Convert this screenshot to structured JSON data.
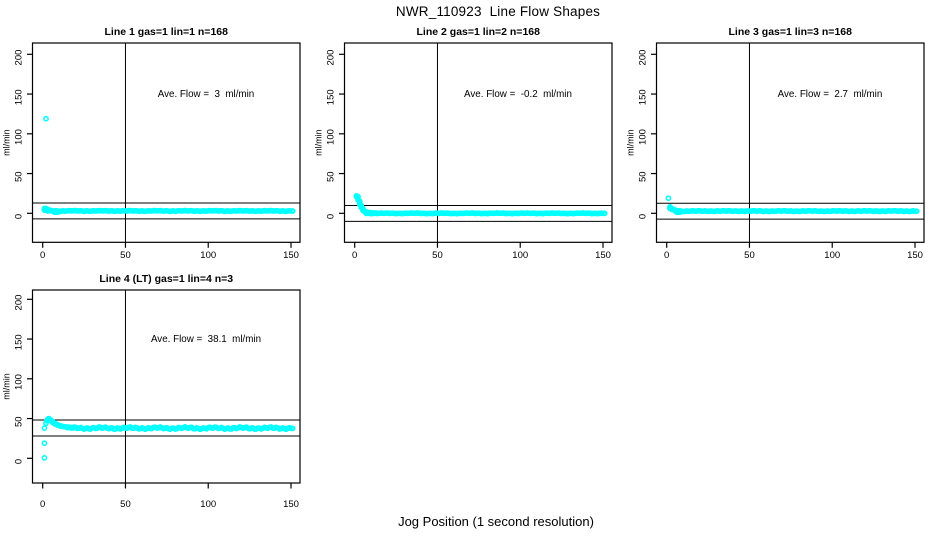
{
  "figure": {
    "title": "NWR_110923  Line Flow Shapes",
    "xlabel": "Jog Position (1 second resolution)",
    "background_color": "#FFFFFF",
    "axis_color": "#000000",
    "marker_color": "#00FFFF"
  },
  "chart_data": [
    {
      "type": "scatter",
      "title": "Line 1 gas=1 lin=1 n=168",
      "line": 1,
      "gas": 1,
      "lin": 1,
      "n": 168,
      "annotation": "Ave. Flow =  3  ml/min",
      "ave_flow_ml_min": 3,
      "ylabel": "ml/min",
      "xticks": [
        0,
        50,
        100,
        150
      ],
      "yticks": [
        0,
        50,
        100,
        150,
        200
      ],
      "xlim": [
        -6,
        156
      ],
      "ylim": [
        -38,
        214
      ],
      "grid": false,
      "vline_x": 50,
      "hlines": [
        13,
        -7
      ],
      "marker": "open-circle",
      "head_points": [
        [
          2,
          119
        ],
        [
          1,
          6
        ],
        [
          1,
          5
        ],
        [
          1,
          4
        ],
        [
          2,
          6
        ],
        [
          2,
          5
        ],
        [
          2,
          4
        ],
        [
          3,
          5
        ],
        [
          3,
          4
        ],
        [
          4,
          4
        ],
        [
          5,
          3.5
        ],
        [
          6,
          3
        ],
        [
          7,
          1.5
        ],
        [
          8,
          1.2
        ],
        [
          9,
          1.5
        ],
        [
          10,
          2
        ],
        [
          11,
          2.5
        ]
      ],
      "band_runs": [
        {
          "from": 3,
          "to": 151,
          "step": 1,
          "y": 3,
          "amp": 0.5
        }
      ]
    },
    {
      "type": "scatter",
      "title": "Line 2 gas=1 lin=2 n=168",
      "line": 2,
      "gas": 1,
      "lin": 2,
      "n": 168,
      "annotation": "Ave. Flow =  -0.2  ml/min",
      "ave_flow_ml_min": -0.2,
      "ylabel": "ml/min",
      "xticks": [
        0,
        50,
        100,
        150
      ],
      "yticks": [
        0,
        50,
        100,
        150,
        200
      ],
      "xlim": [
        -6,
        156
      ],
      "ylim": [
        -38,
        214
      ],
      "grid": false,
      "vline_x": 50,
      "hlines": [
        9.8,
        -10.2
      ],
      "marker": "open-circle",
      "head_points": [
        [
          1,
          22
        ],
        [
          1,
          21
        ],
        [
          2,
          21
        ],
        [
          2,
          19
        ],
        [
          2,
          17
        ],
        [
          3,
          15
        ],
        [
          3,
          13
        ],
        [
          3,
          11
        ],
        [
          4,
          10
        ],
        [
          4,
          8.5
        ],
        [
          4,
          7
        ],
        [
          5,
          6
        ],
        [
          5,
          4.5
        ],
        [
          5,
          3.5
        ],
        [
          6,
          2.8
        ],
        [
          6,
          2.2
        ],
        [
          7,
          1.8
        ],
        [
          7,
          1.4
        ],
        [
          8,
          1.1
        ],
        [
          9,
          0.9
        ],
        [
          10,
          0.7
        ],
        [
          11,
          0.5
        ],
        [
          12,
          0.4
        ],
        [
          13,
          0.3
        ]
      ],
      "band_runs": [
        {
          "from": 7,
          "to": 151,
          "step": 1,
          "y": 0,
          "amp": 0.45
        }
      ]
    },
    {
      "type": "scatter",
      "title": "Line 3 gas=1 lin=3 n=168",
      "line": 3,
      "gas": 1,
      "lin": 3,
      "n": 168,
      "annotation": "Ave. Flow =  2.7  ml/min",
      "ave_flow_ml_min": 2.7,
      "ylabel": "ml/min",
      "xticks": [
        0,
        50,
        100,
        150
      ],
      "yticks": [
        0,
        50,
        100,
        150,
        200
      ],
      "xlim": [
        -6,
        156
      ],
      "ylim": [
        -38,
        214
      ],
      "grid": false,
      "vline_x": 50,
      "hlines": [
        12.7,
        -7.3
      ],
      "marker": "open-circle",
      "head_points": [
        [
          1,
          19
        ],
        [
          2,
          8
        ],
        [
          2,
          7
        ],
        [
          2,
          6
        ],
        [
          3,
          6
        ],
        [
          3,
          5
        ],
        [
          4,
          5
        ],
        [
          4,
          4.5
        ],
        [
          5,
          4
        ],
        [
          5,
          3.8
        ],
        [
          6,
          3.5
        ],
        [
          7,
          3.2
        ],
        [
          8,
          3
        ],
        [
          6,
          1.5
        ],
        [
          7,
          1.2
        ],
        [
          8,
          1.5
        ],
        [
          9,
          2
        ]
      ],
      "band_runs": [
        {
          "from": 5,
          "to": 151,
          "step": 1,
          "y": 2.8,
          "amp": 0.5
        }
      ]
    },
    {
      "type": "scatter",
      "title": "Line 4 (LT) gas=1 lin=4 n=3",
      "line": 4,
      "gas": 1,
      "lin": 4,
      "n": 3,
      "annotation": "Ave. Flow =  38.1  ml/min",
      "ave_flow_ml_min": 38.1,
      "ylabel": "ml/min",
      "xticks": [
        0,
        50,
        100,
        150
      ],
      "yticks": [
        0,
        50,
        100,
        150,
        200
      ],
      "xlim": [
        -6,
        156
      ],
      "ylim": [
        -38,
        214
      ],
      "grid": false,
      "vline_x": 50,
      "hlines": [
        48.1,
        28.1
      ],
      "marker": "open-circle",
      "head_points": [
        [
          1,
          0.5
        ],
        [
          1,
          19
        ],
        [
          1,
          38
        ],
        [
          2,
          44
        ],
        [
          2.5,
          47
        ],
        [
          3,
          49
        ],
        [
          3.5,
          50
        ],
        [
          4,
          49.5
        ],
        [
          4,
          48.5
        ],
        [
          5,
          48
        ],
        [
          5,
          47
        ],
        [
          6,
          46
        ],
        [
          6,
          45.2
        ],
        [
          7,
          44.5
        ],
        [
          7,
          43.8
        ],
        [
          8,
          43.2
        ],
        [
          8,
          42.6
        ],
        [
          9,
          42.1
        ],
        [
          9,
          41.7
        ],
        [
          10,
          41.3
        ],
        [
          10,
          41
        ],
        [
          11,
          40.7
        ],
        [
          11,
          40.4
        ],
        [
          12,
          40.1
        ],
        [
          13,
          39.8
        ],
        [
          14,
          39.5
        ],
        [
          15,
          39.2
        ],
        [
          16,
          39
        ],
        [
          17,
          38.8
        ],
        [
          18,
          38.6
        ],
        [
          19,
          38.4
        ],
        [
          20,
          38.3
        ]
      ],
      "band_runs": [
        {
          "from": 15,
          "to": 151,
          "step": 1,
          "y": 38,
          "amp": 1.5
        }
      ]
    }
  ]
}
